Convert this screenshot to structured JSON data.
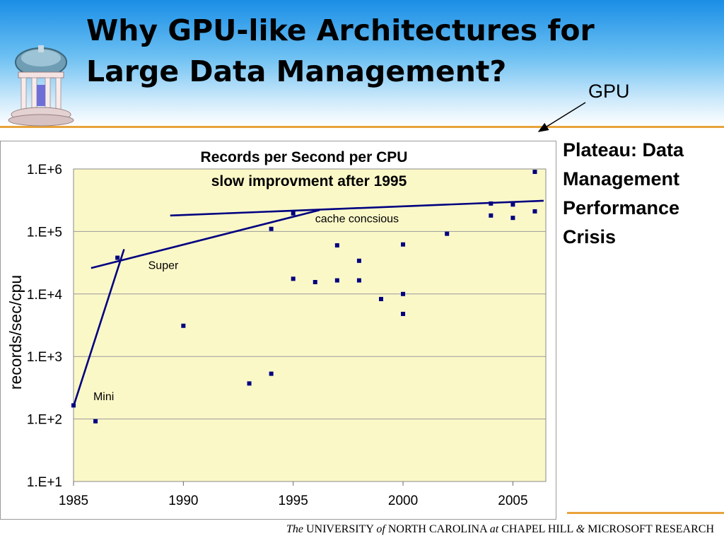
{
  "slide": {
    "title_line1": "Why GPU-like Architectures for",
    "title_line2": "Large Data Management?",
    "gpu_label": "GPU",
    "plateau_note": "Plateau: Data Management Performance Crisis",
    "footer": {
      "the": "The",
      "university": "UNIVERSITY",
      "of": "of",
      "north_carolina": "NORTH CAROLINA",
      "at": "at",
      "chapel_hill": "CHAPEL HILL",
      "amp": "&",
      "microsoft": "MICROSOFT RESEARCH"
    },
    "colors": {
      "accent_rule": "#e8a33a",
      "header_gradient_top": "#1a8ee6",
      "plot_background": "#fbf8c8",
      "series_color": "#000080"
    }
  },
  "chart_data": {
    "type": "scatter",
    "title": "Records per Second per CPU",
    "subtitle": "slow improvment after 1995",
    "xlabel": "",
    "ylabel": "records/sec/cpu",
    "x_ticks": [
      "1985",
      "1990",
      "1995",
      "2000",
      "2005"
    ],
    "y_ticks": [
      "1.E+1",
      "1.E+2",
      "1.E+3",
      "1.E+4",
      "1.E+5",
      "1.E+6"
    ],
    "xlim": [
      1985,
      2006.5
    ],
    "ylim": [
      10,
      1000000
    ],
    "y_scale": "log",
    "grid": "horizontal",
    "annotations": [
      {
        "text": "Mini",
        "x": 1985.9,
        "y": 200
      },
      {
        "text": "Super",
        "x": 1988.4,
        "y": 25000
      },
      {
        "text": "cache concsious",
        "x": 1996.0,
        "y": 140000
      }
    ],
    "trend_lines": [
      {
        "points": [
          [
            1985.0,
            160
          ],
          [
            1987.3,
            52000
          ]
        ]
      },
      {
        "points": [
          [
            1985.8,
            26000
          ],
          [
            1996.2,
            220000
          ]
        ]
      },
      {
        "points": [
          [
            1989.4,
            180000
          ],
          [
            2006.4,
            310000
          ]
        ]
      }
    ],
    "points": [
      {
        "x": 1985.0,
        "y": 165
      },
      {
        "x": 1986.0,
        "y": 92
      },
      {
        "x": 1987.0,
        "y": 38000
      },
      {
        "x": 1990.0,
        "y": 3100
      },
      {
        "x": 1993.0,
        "y": 370
      },
      {
        "x": 1994.0,
        "y": 530
      },
      {
        "x": 1994.0,
        "y": 110000
      },
      {
        "x": 1995.0,
        "y": 195000
      },
      {
        "x": 1995.0,
        "y": 17500
      },
      {
        "x": 1996.0,
        "y": 15500
      },
      {
        "x": 1997.0,
        "y": 60000
      },
      {
        "x": 1997.0,
        "y": 16500
      },
      {
        "x": 1998.0,
        "y": 34000
      },
      {
        "x": 1998.0,
        "y": 16500
      },
      {
        "x": 1999.0,
        "y": 8300
      },
      {
        "x": 2000.0,
        "y": 62000
      },
      {
        "x": 2000.0,
        "y": 10000
      },
      {
        "x": 2000.0,
        "y": 4800
      },
      {
        "x": 2002.0,
        "y": 92000
      },
      {
        "x": 2004.0,
        "y": 280000
      },
      {
        "x": 2004.0,
        "y": 180000
      },
      {
        "x": 2005.0,
        "y": 270000
      },
      {
        "x": 2005.0,
        "y": 165000
      },
      {
        "x": 2006.0,
        "y": 900000
      },
      {
        "x": 2006.0,
        "y": 210000
      }
    ]
  }
}
